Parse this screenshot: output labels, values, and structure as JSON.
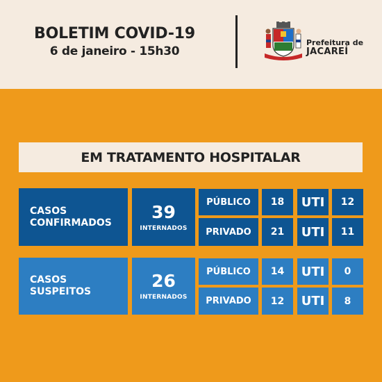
{
  "header": {
    "title": "BOLETIM COVID-19",
    "date": "6 de janeiro - 15h30",
    "logo_line1": "Prefeitura de",
    "logo_line2": "JACAREÍ"
  },
  "banner": {
    "title": "EM TRATAMENTO HOSPITALAR"
  },
  "confirmados": {
    "label_line1": "CASOS",
    "label_line2": "CONFIRMADOS",
    "count": "39",
    "count_label": "INTERNADOS",
    "rows": [
      {
        "sector": "PÚBLICO",
        "value": "18",
        "uti_label": "UTI",
        "uti_value": "12"
      },
      {
        "sector": "PRIVADO",
        "value": "21",
        "uti_label": "UTI",
        "uti_value": "11"
      }
    ]
  },
  "suspeitos": {
    "label_line1": "CASOS",
    "label_line2": "SUSPEITOS",
    "count": "26",
    "count_label": "INTERNADOS",
    "rows": [
      {
        "sector": "PÚBLICO",
        "value": "14",
        "uti_label": "UTI",
        "uti_value": "0"
      },
      {
        "sector": "PRIVADO",
        "value": "12",
        "uti_label": "UTI",
        "uti_value": "8"
      }
    ]
  },
  "colors": {
    "background": "#ef9a1b",
    "header": "#f5ebe0",
    "confirmados_blue": "#0e5592",
    "suspeitos_blue": "#2d7ec2"
  }
}
